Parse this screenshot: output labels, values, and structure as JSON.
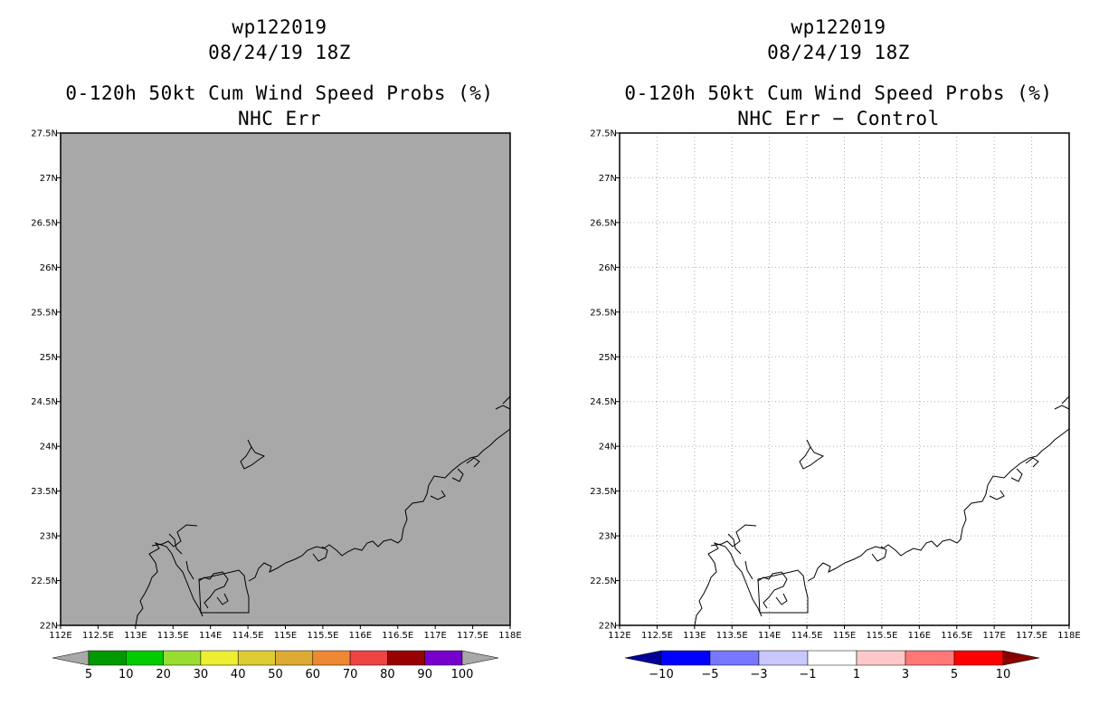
{
  "panels": [
    {
      "storm_id": "wp122019",
      "datetime": "08/24/19 18Z",
      "product": "0-120h 50kt Cum Wind Speed Probs (%)",
      "subtitle": "NHC Err",
      "map_fill": "#a8a8a8",
      "grid": false,
      "colorbar": {
        "labels": [
          "5",
          "10",
          "20",
          "30",
          "40",
          "50",
          "60",
          "70",
          "80",
          "90",
          "100"
        ],
        "colors": [
          "#009900",
          "#00cc00",
          "#99dd33",
          "#eeee33",
          "#ddcc33",
          "#ddaa33",
          "#ee8833",
          "#ee4444",
          "#990000",
          "#7700cc"
        ],
        "under_color": "#a8a8a8",
        "over_color": "#a8a8a8"
      }
    },
    {
      "storm_id": "wp122019",
      "datetime": "08/24/19 18Z",
      "product": "0-120h 50kt Cum Wind Speed Probs (%)",
      "subtitle": "NHC Err − Control",
      "map_fill": "#ffffff",
      "grid": true,
      "colorbar": {
        "labels": [
          "−10",
          "−5",
          "−3",
          "−1",
          "1",
          "3",
          "5",
          "10"
        ],
        "colors": [
          "#0000ff",
          "#7777ff",
          "#c8c8ff",
          "#ffffff",
          "#ffc8c8",
          "#ff7777",
          "#ff0000"
        ],
        "under_color": "#000099",
        "over_color": "#880000"
      }
    }
  ],
  "axes": {
    "x_ticks": [
      "112E",
      "112.5E",
      "113E",
      "113.5E",
      "114E",
      "114.5E",
      "115E",
      "115.5E",
      "116E",
      "116.5E",
      "117E",
      "117.5E",
      "118E"
    ],
    "y_ticks": [
      "22N",
      "22.5N",
      "23N",
      "23.5N",
      "24N",
      "24.5N",
      "25N",
      "25.5N",
      "26N",
      "26.5N",
      "27N",
      "27.5N"
    ],
    "lon_range": [
      112,
      118
    ],
    "lat_range": [
      22,
      27.5
    ]
  }
}
